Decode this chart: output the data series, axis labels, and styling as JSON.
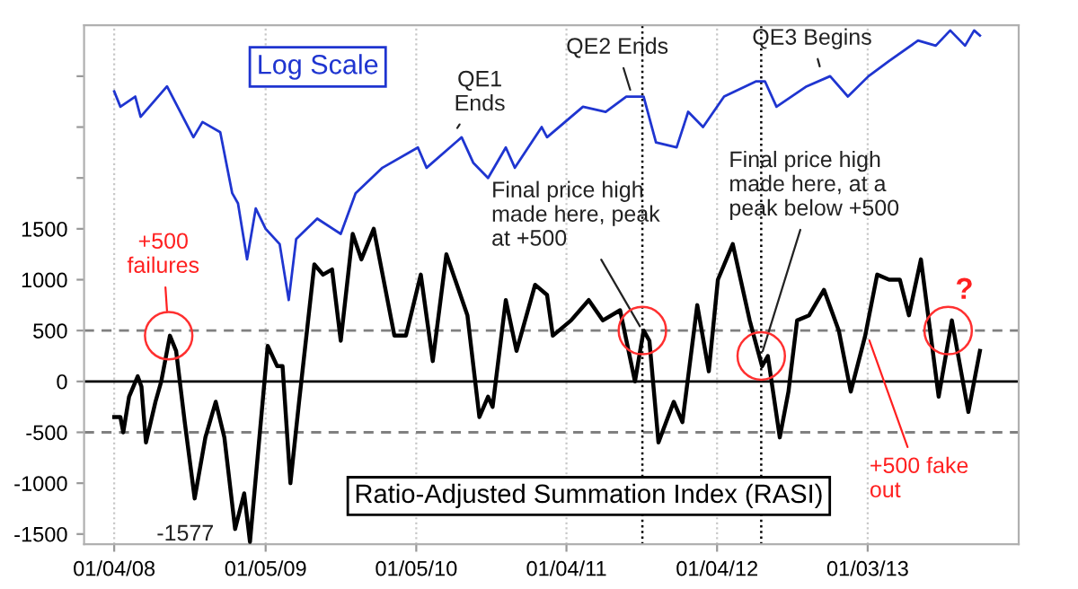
{
  "chart_data": {
    "type": "line",
    "xlim": [
      "2007-10-23",
      "2014-01-04"
    ],
    "xticks": [
      {
        "value": "2008-01-04",
        "label": "01/04/08"
      },
      {
        "value": "2009-01-05",
        "label": "01/05/09"
      },
      {
        "value": "2010-01-05",
        "label": "01/05/10"
      },
      {
        "value": "2011-01-04",
        "label": "01/04/11"
      },
      {
        "value": "2012-01-04",
        "label": "01/04/12"
      },
      {
        "value": "2013-01-03",
        "label": "01/03/13"
      }
    ],
    "ylim": [
      -1600,
      3500
    ],
    "yticks": [
      -1500,
      -1000,
      -500,
      0,
      500,
      1000,
      1500,
      {
        "value": 2000,
        "label": null
      },
      {
        "value": 2500,
        "label": null
      },
      {
        "value": 3000,
        "label": null
      }
    ],
    "grid": "x",
    "series": [
      {
        "name": "Log Scale",
        "color": "#1f35d0",
        "x": [
          "2008-01-04",
          "2008-01-19",
          "2008-02-24",
          "2008-03-08",
          "2008-05-11",
          "2008-07-14",
          "2008-08-05",
          "2008-09-17",
          "2008-10-16",
          "2008-10-30",
          "2008-11-21",
          "2008-12-12",
          "2009-01-05",
          "2009-02-08",
          "2009-03-02",
          "2009-03-20",
          "2009-05-10",
          "2009-07-06",
          "2009-08-11",
          "2009-10-15",
          "2010-01-09",
          "2010-01-30",
          "2010-04-25",
          "2010-05-23",
          "2010-06-28",
          "2010-08-10",
          "2010-09-01",
          "2010-11-05",
          "2010-11-18",
          "2011-02-13",
          "2011-04-09",
          "2011-05-29",
          "2011-07-10",
          "2011-08-09",
          "2011-09-28",
          "2011-10-26",
          "2011-12-01",
          "2012-01-21",
          "2012-04-08",
          "2012-04-29",
          "2012-05-27",
          "2012-08-08",
          "2012-10-04",
          "2012-11-16",
          "2013-01-05",
          "2013-02-24",
          "2013-05-05",
          "2013-06-17",
          "2013-07-22",
          "2013-08-27",
          "2013-09-18",
          "2013-10-02"
        ],
        "values": [
          2850,
          2700,
          2800,
          2600,
          2900,
          2400,
          2550,
          2450,
          1850,
          1750,
          1200,
          1700,
          1500,
          1350,
          800,
          1400,
          1600,
          1450,
          1850,
          2100,
          2300,
          2100,
          2400,
          2150,
          2000,
          2300,
          2100,
          2500,
          2400,
          2700,
          2650,
          2800,
          2800,
          2350,
          2300,
          2650,
          2500,
          2800,
          2950,
          2950,
          2700,
          2900,
          3000,
          2800,
          3000,
          3150,
          3350,
          3300,
          3450,
          3300,
          3450,
          3400
        ]
      },
      {
        "name": "Ratio-Adjusted Summation Index (RASI)",
        "color": "#000000",
        "x": [
          "2008-01-04",
          "2008-01-19",
          "2008-01-26",
          "2008-02-09",
          "2008-03-01",
          "2008-03-10",
          "2008-03-21",
          "2008-04-13",
          "2008-04-27",
          "2008-05-18",
          "2008-06-02",
          "2008-06-23",
          "2008-07-17",
          "2008-08-12",
          "2008-09-06",
          "2008-09-27",
          "2008-10-23",
          "2008-11-14",
          "2008-11-28",
          "2009-01-10",
          "2009-02-02",
          "2009-02-15",
          "2009-03-06",
          "2009-03-27",
          "2009-05-03",
          "2009-05-24",
          "2009-06-15",
          "2009-07-06",
          "2009-08-04",
          "2009-08-25",
          "2009-09-24",
          "2009-11-13",
          "2009-12-11",
          "2010-01-16",
          "2010-02-14",
          "2010-03-19",
          "2010-05-09",
          "2010-06-07",
          "2010-06-28",
          "2010-07-09",
          "2010-08-10",
          "2010-09-05",
          "2010-10-20",
          "2010-11-18",
          "2010-12-02",
          "2011-01-15",
          "2011-02-27",
          "2011-04-02",
          "2011-05-14",
          "2011-06-19",
          "2011-07-10",
          "2011-07-24",
          "2011-08-15",
          "2011-09-21",
          "2011-10-12",
          "2011-11-17",
          "2011-12-15",
          "2012-01-06",
          "2012-02-11",
          "2012-03-23",
          "2012-04-22",
          "2012-05-06",
          "2012-06-04",
          "2012-06-25",
          "2012-07-16",
          "2012-08-14",
          "2012-09-19",
          "2012-10-25",
          "2012-11-23",
          "2012-12-28",
          "2013-01-26",
          "2013-02-24",
          "2013-03-22",
          "2013-04-13",
          "2013-05-12",
          "2013-06-24",
          "2013-07-26",
          "2013-09-04",
          "2013-10-02"
        ],
        "values": [
          -350,
          -350,
          -500,
          -150,
          50,
          -50,
          -600,
          -200,
          0,
          450,
          300,
          -400,
          -1150,
          -550,
          -200,
          -550,
          -1450,
          -1100,
          -1577,
          350,
          150,
          150,
          -1000,
          -200,
          1150,
          1050,
          1100,
          400,
          1450,
          1200,
          1500,
          450,
          450,
          1050,
          200,
          1250,
          650,
          -350,
          -150,
          -250,
          800,
          300,
          950,
          850,
          450,
          600,
          800,
          600,
          700,
          0,
          500,
          400,
          -600,
          -200,
          -400,
          750,
          100,
          1000,
          1350,
          600,
          150,
          250,
          -550,
          -100,
          600,
          650,
          900,
          500,
          -100,
          450,
          1050,
          1000,
          1000,
          650,
          1200,
          -150,
          600,
          -300,
          300
        ]
      }
    ],
    "ref_lines": [
      {
        "axis": "y",
        "value": 500,
        "color": "#808080",
        "line_style": "dashed"
      },
      {
        "axis": "y",
        "value": -500,
        "color": "#808080",
        "line_style": "dashed"
      },
      {
        "axis": "y",
        "value": 0,
        "color": "#000000",
        "line_style": "solid"
      },
      {
        "axis": "x",
        "value": "2011-07-07",
        "color": "#000000",
        "line_style": "dotted"
      },
      {
        "axis": "x",
        "value": "2012-04-20",
        "color": "#000000",
        "line_style": "dotted"
      }
    ],
    "annotations": [
      {
        "text": "QE1\nEnds",
        "x": "2010-04-08",
        "y": 2450
      },
      {
        "text": "QE2 Ends",
        "x": "2011-06-11",
        "y": 2820
      },
      {
        "text": "QE3 Begins",
        "x": "2012-09-12",
        "y": 3050
      },
      {
        "text": "Final price high\nmade here, peak\nat +500",
        "x": "2011-07-07",
        "y": 500
      },
      {
        "text": "Final price high\nmade here, at a\npeak below +500",
        "x": "2012-04-20",
        "y": 250
      },
      {
        "text": "+500\nfailures",
        "x": "2008-05-15",
        "y": 450
      },
      {
        "text": "+500 fake\nout",
        "x": "2013-01-03",
        "y": 450
      },
      {
        "text": "?",
        "x": "2013-07-17",
        "y": 500
      },
      {
        "text": "-1577",
        "x": "2008-11-28",
        "y": -1577
      }
    ]
  }
}
